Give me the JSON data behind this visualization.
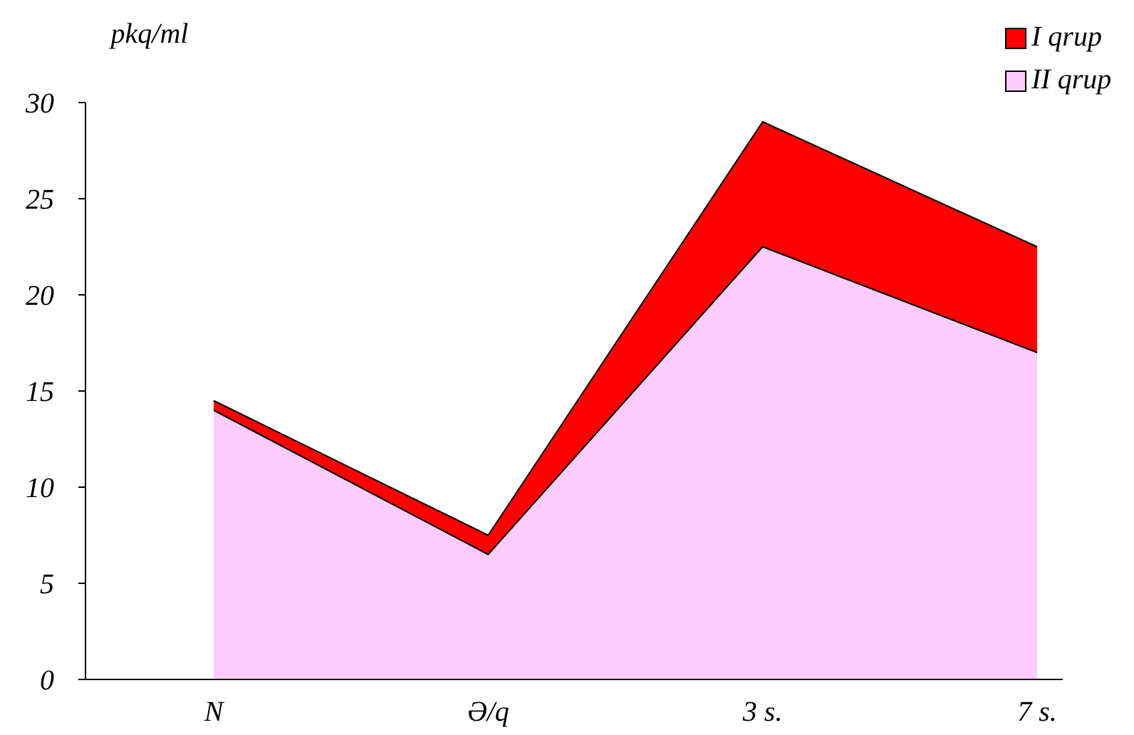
{
  "chart_data": {
    "type": "area",
    "ylabel": "pkq/ml",
    "categories": [
      "N",
      "Ə/q",
      "3 s.",
      "7 s."
    ],
    "series": [
      {
        "name": "I qrup",
        "color": "#ff0000",
        "values": [
          14.5,
          7.5,
          29,
          22.5
        ]
      },
      {
        "name": "II qrup",
        "color": "#ffccff",
        "values": [
          14,
          6.5,
          22.5,
          17
        ]
      }
    ],
    "ylim": [
      0,
      30
    ],
    "yticks": [
      0,
      5,
      10,
      15,
      20,
      25,
      30
    ],
    "grid": false,
    "legend": "top right"
  }
}
